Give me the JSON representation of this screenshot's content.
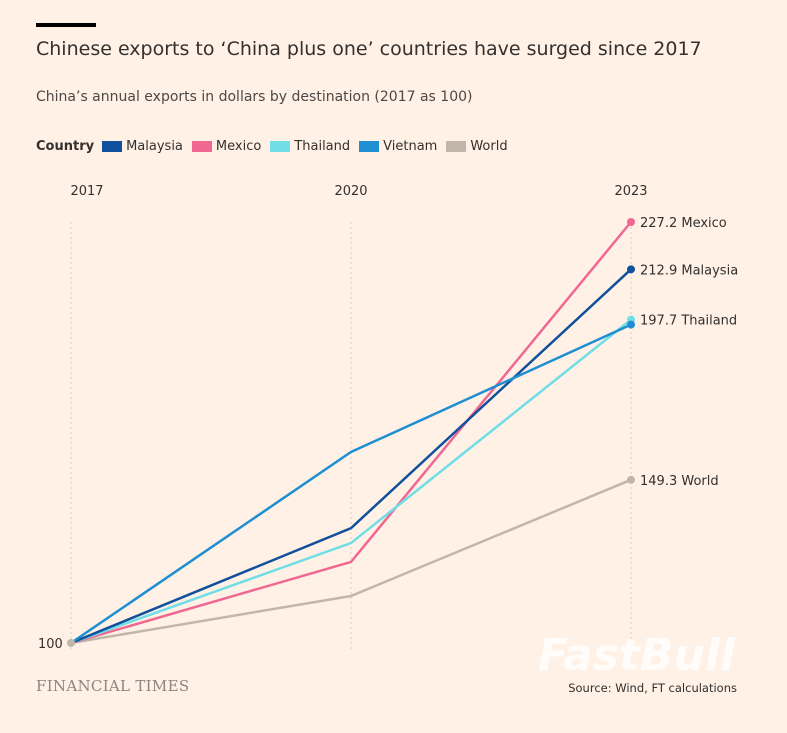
{
  "header": {
    "title": "Chinese exports to ‘China plus one’ countries have surged since 2017",
    "subtitle": "China’s annual exports in dollars by destination (2017 as 100)"
  },
  "footer": {
    "brand": "FINANCIAL TIMES",
    "source": "Source: Wind, FT calculations",
    "watermark": "FastBull"
  },
  "chart_data": {
    "type": "line",
    "legend_title": "Country",
    "legend_placement": "top-left",
    "x": [
      "2017",
      "2020",
      "2023"
    ],
    "ylim": [
      100,
      227.2
    ],
    "y_tick_label": "100",
    "grid": "vertical dotted",
    "series": [
      {
        "name": "World",
        "color": "#c2b6ab",
        "values": [
          100,
          114.2,
          149.3
        ],
        "end_label": "149.3 World"
      },
      {
        "name": "Mexico",
        "color": "#f06892",
        "values": [
          100,
          124.5,
          227.2
        ],
        "end_label": "227.2 Mexico"
      },
      {
        "name": "Thailand",
        "color": "#6fdee6",
        "values": [
          100,
          130.2,
          197.7
        ],
        "end_label": "197.7 Thailand"
      },
      {
        "name": "Malaysia",
        "color": "#11509c",
        "values": [
          100,
          134.7,
          212.9
        ],
        "end_label": "212.9 Malaysia"
      },
      {
        "name": "Vietnam",
        "color": "#1f8fd2",
        "values": [
          100,
          157.7,
          196.2
        ],
        "end_label": ""
      }
    ]
  }
}
